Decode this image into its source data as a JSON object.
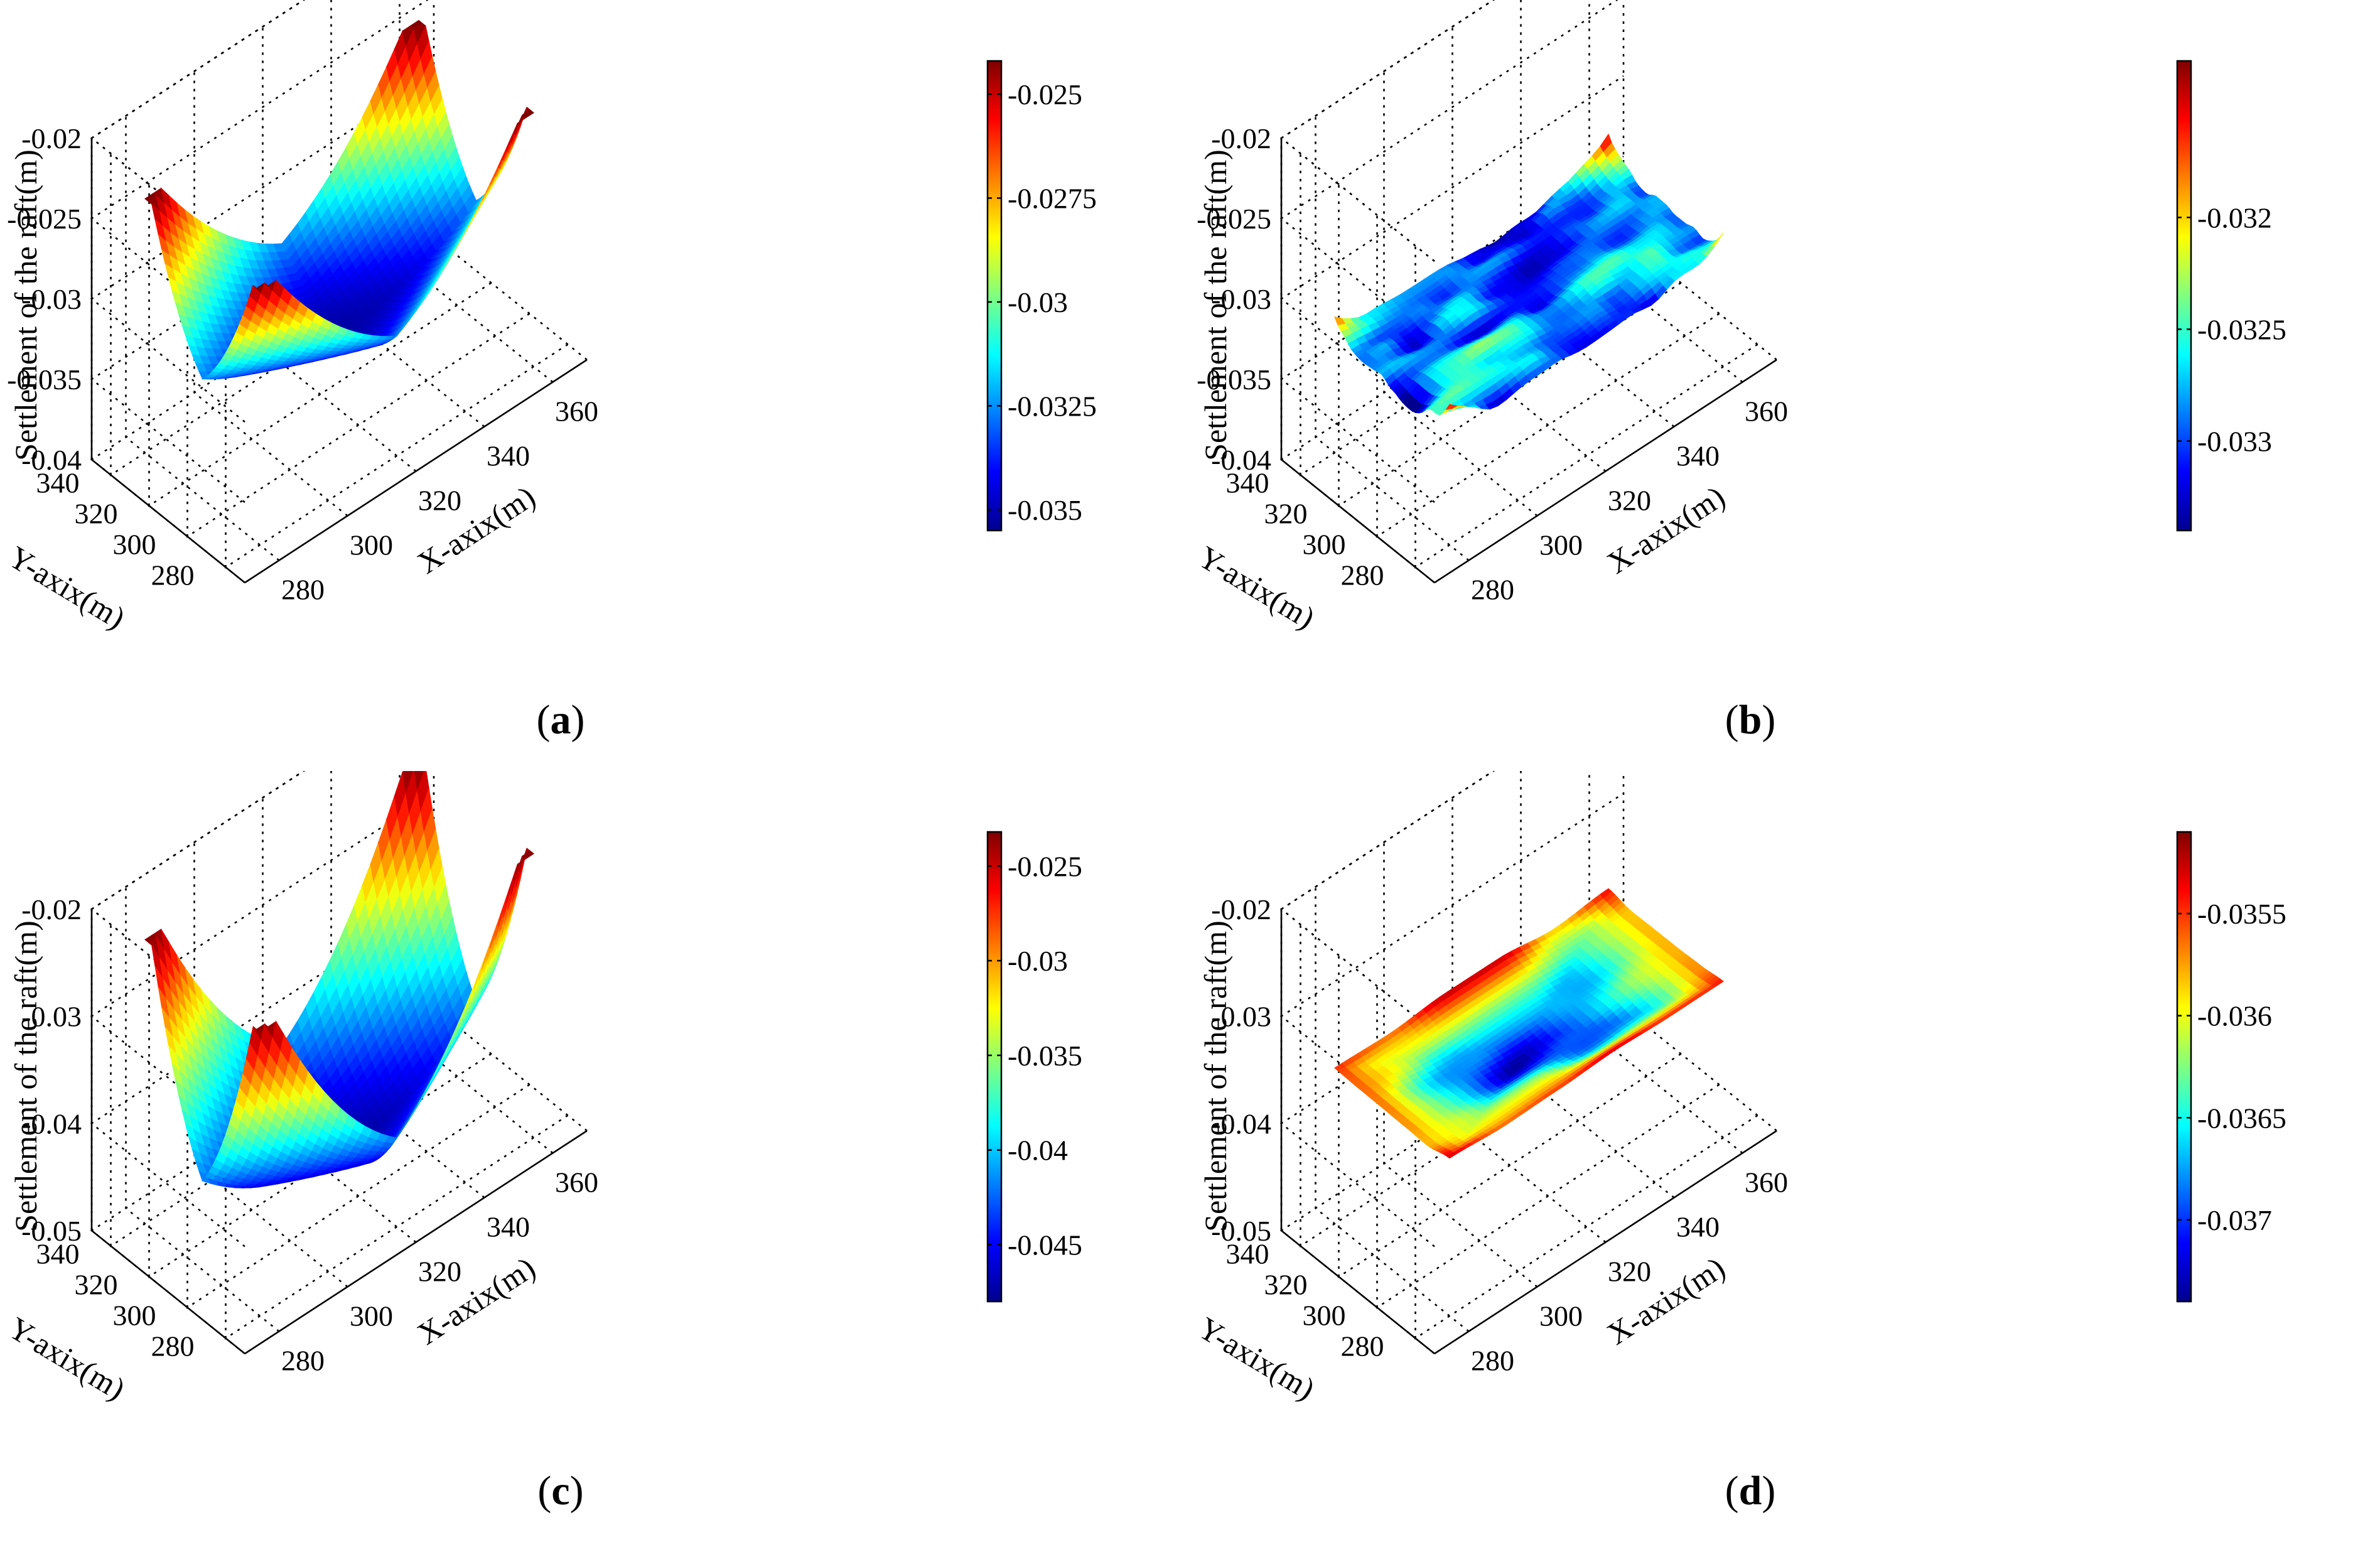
{
  "colors": {
    "jet": [
      "#00008f",
      "#0000ff",
      "#0080ff",
      "#00ffff",
      "#80ff80",
      "#ffff00",
      "#ff8000",
      "#ff0000",
      "#800000"
    ]
  },
  "chart_data": [
    {
      "id": "a",
      "type": "surface3d",
      "caption_letter": "a",
      "xlabel": "X-axix(m)",
      "ylabel": "Y-axix(m)",
      "zlabel": "Settlement of the raft(m)",
      "xlim": [
        270,
        370
      ],
      "ylim": [
        270,
        350
      ],
      "xticks": [
        "280",
        "300",
        "320",
        "340",
        "360"
      ],
      "yticks": [
        "280",
        "300",
        "320",
        "340"
      ],
      "zlim": [
        -0.04,
        -0.02
      ],
      "zticks": [
        "-0.04",
        "-0.035",
        "-0.03",
        "-0.025",
        "-0.02"
      ],
      "surface": {
        "shape": "bowl",
        "x_range": [
          280,
          360
        ],
        "y_range": [
          280,
          340
        ],
        "z_min": -0.0352,
        "z_corner": -0.0242
      },
      "colorbar": {
        "range": [
          -0.0355,
          -0.0242
        ],
        "ticks": [
          "-0.025",
          "-0.0275",
          "-0.03",
          "-0.0325",
          "-0.035"
        ]
      }
    },
    {
      "id": "b",
      "type": "surface3d",
      "caption_letter": "b",
      "xlabel": "X-axix(m)",
      "ylabel": "Y-axix(m)",
      "zlabel": "Settlement of the raft(m)",
      "xlim": [
        270,
        370
      ],
      "ylim": [
        270,
        350
      ],
      "xticks": [
        "280",
        "300",
        "320",
        "340",
        "360"
      ],
      "yticks": [
        "280",
        "300",
        "320",
        "340"
      ],
      "zlim": [
        -0.04,
        -0.02
      ],
      "zticks": [
        "-0.04",
        "-0.035",
        "-0.03",
        "-0.025",
        "-0.02"
      ],
      "surface": {
        "shape": "noisy-flat",
        "x_range": [
          280,
          360
        ],
        "y_range": [
          280,
          340
        ],
        "z_mean": -0.0328,
        "z_min": -0.0334,
        "z_max": -0.0314
      },
      "colorbar": {
        "range": [
          -0.0334,
          -0.0313
        ],
        "ticks": [
          "-0.032",
          "-0.0325",
          "-0.033"
        ]
      }
    },
    {
      "id": "c",
      "type": "surface3d",
      "caption_letter": "c",
      "xlabel": "X-axix(m)",
      "ylabel": "Y-axix(m)",
      "zlabel": "Settlement of the raft(m)",
      "xlim": [
        270,
        370
      ],
      "ylim": [
        270,
        350
      ],
      "xticks": [
        "280",
        "300",
        "320",
        "340",
        "360"
      ],
      "yticks": [
        "280",
        "300",
        "320",
        "340"
      ],
      "zlim": [
        -0.05,
        -0.02
      ],
      "zticks": [
        "-0.05",
        "-0.04",
        "-0.03",
        "-0.02"
      ],
      "surface": {
        "shape": "bowl",
        "x_range": [
          280,
          360
        ],
        "y_range": [
          280,
          340
        ],
        "z_min": -0.0475,
        "z_corner": -0.0235
      },
      "colorbar": {
        "range": [
          -0.048,
          -0.0232
        ],
        "ticks": [
          "-0.025",
          "-0.03",
          "-0.035",
          "-0.04",
          "-0.045"
        ]
      }
    },
    {
      "id": "d",
      "type": "surface3d",
      "caption_letter": "d",
      "xlabel": "X-axix(m)",
      "ylabel": "Y-axix(m)",
      "zlabel": "Settlement of the raft(m)",
      "xlim": [
        270,
        370
      ],
      "ylim": [
        270,
        350
      ],
      "xticks": [
        "280",
        "300",
        "320",
        "340",
        "360"
      ],
      "yticks": [
        "280",
        "300",
        "320",
        "340"
      ],
      "zlim": [
        -0.05,
        -0.02
      ],
      "zticks": [
        "-0.05",
        "-0.04",
        "-0.03",
        "-0.02"
      ],
      "surface": {
        "shape": "noisy-ring",
        "x_range": [
          280,
          360
        ],
        "y_range": [
          280,
          340
        ],
        "z_center": -0.0373,
        "z_edge": -0.0354
      },
      "colorbar": {
        "range": [
          -0.0374,
          -0.0351
        ],
        "ticks": [
          "-0.0355",
          "-0.036",
          "-0.0365",
          "-0.037"
        ]
      }
    }
  ]
}
